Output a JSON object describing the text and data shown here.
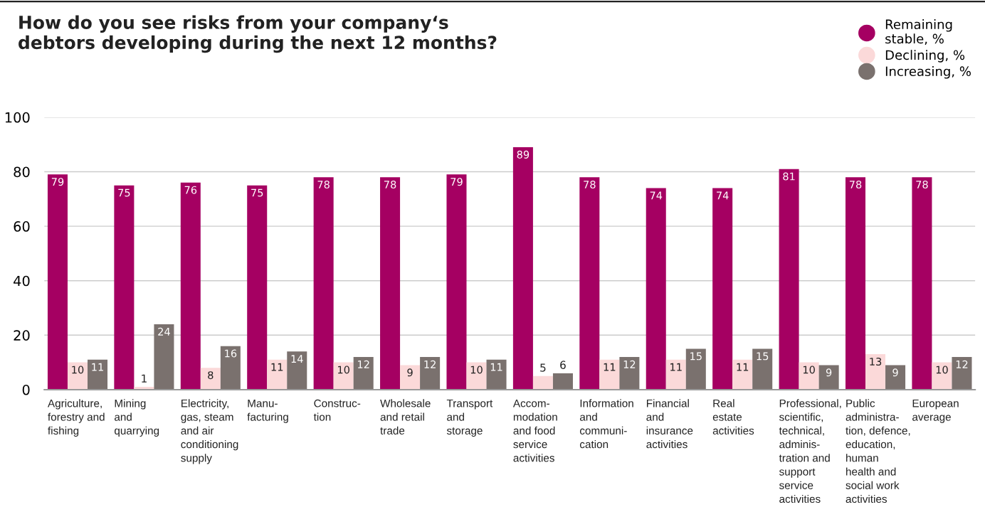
{
  "chart_data": {
    "type": "bar",
    "title": "How do you see risks from your company‘s\ndebtors developing during the next 12 months?",
    "categories": [
      "Agriculture,\nforestry and\nfishing",
      "Mining\nand\nquarrying",
      "Electricity,\ngas, steam\nand air\nconditioning\nsupply",
      "Manu-\nfacturing",
      "Construc-\ntion",
      "Wholesale\nand retail\ntrade",
      "Transport\nand\nstorage",
      "Accom-\nmodation\nand food\nservice\nactivities",
      "Information\nand\ncommuni-\ncation",
      "Financial\nand\ninsurance\nactivities",
      "Real\nestate\nactivities",
      "Professional,\nscientific,\ntechnical,\nadminis-\ntration and\nsupport\nservice\nactivities",
      "Public\nadministra-\ntion, defence,\neducation,\nhuman\nhealth and\nsocial work\nactivities",
      "European\naverage"
    ],
    "series": [
      {
        "name": "Remaining\nstable, %",
        "color": "#a50062",
        "values": [
          79,
          75,
          76,
          75,
          78,
          78,
          79,
          89,
          78,
          74,
          74,
          81,
          78,
          78
        ]
      },
      {
        "name": "Declining, %",
        "color": "#fbd9d9",
        "values": [
          10,
          1,
          8,
          11,
          10,
          9,
          10,
          5,
          11,
          11,
          11,
          10,
          13,
          10
        ]
      },
      {
        "name": "Increasing, %",
        "color": "#7a716e",
        "values": [
          11,
          24,
          16,
          14,
          12,
          12,
          11,
          6,
          12,
          15,
          15,
          9,
          9,
          12
        ]
      }
    ],
    "ylim": [
      0,
      100
    ],
    "yticks": [
      0,
      20,
      40,
      60,
      80,
      100
    ],
    "grid": "y",
    "legend": "top right",
    "data_labels": true
  }
}
